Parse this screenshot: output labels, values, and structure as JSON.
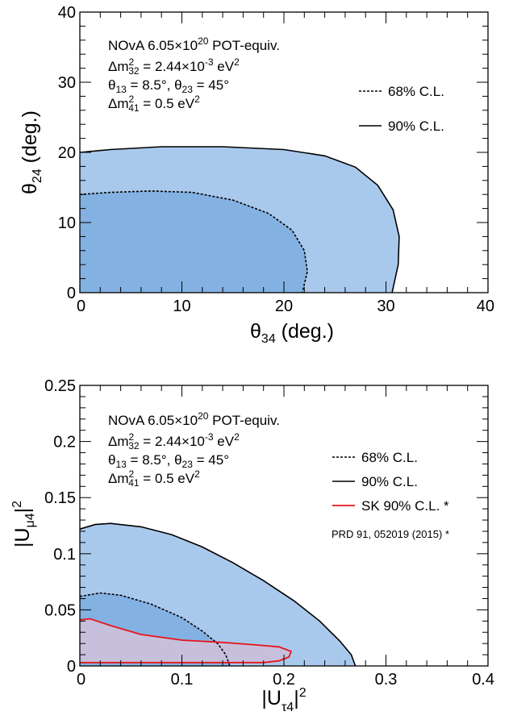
{
  "palette": {
    "outer_fill": "#a9c9ec",
    "inner_fill": "#83b1e2",
    "sk_fill": "#c7c0dc",
    "contour": "#000000",
    "sk_line": "#e8141c"
  },
  "chart_data": [
    {
      "type": "area",
      "xlim": [
        0,
        40
      ],
      "ylim": [
        0,
        40
      ],
      "xticks": [
        "0",
        "10",
        "20",
        "30",
        "40"
      ],
      "yticks": [
        "0",
        "10",
        "20",
        "30",
        "40"
      ],
      "xlabel": {
        "base": "θ",
        "sub": "34",
        "rest": " (deg.)"
      },
      "ylabel": {
        "base": "θ",
        "sub": "24",
        "rest": " (deg.)"
      },
      "info": {
        "line1": {
          "a": "NOvA 6.05×10",
          "sup": "20",
          "b": " POT-equiv."
        },
        "line2": {
          "a": "Δm",
          "sup": "2",
          "sub": "32",
          "b": " = 2.44×10",
          "sup2": "-3",
          "c": " eV",
          "sup3": "2"
        },
        "line3": {
          "a": "θ",
          "sub": "13",
          "b": " = 8.5°, θ",
          "sub2": "23",
          "c": " = 45°"
        },
        "line4": {
          "a": "Δm",
          "sup": "2",
          "sub": "41",
          "b": " = 0.5 eV",
          "sup3": "2"
        }
      },
      "legend": [
        {
          "label": "68% C.L.",
          "style": "dashed"
        },
        {
          "label": "90% C.L.",
          "style": "solid"
        }
      ],
      "series": [
        {
          "name": "90% C.L.",
          "points": [
            [
              0,
              0
            ],
            [
              0,
              20
            ],
            [
              3,
              20.4
            ],
            [
              8,
              20.8
            ],
            [
              14,
              20.8
            ],
            [
              20,
              20.4
            ],
            [
              24,
              19.5
            ],
            [
              27,
              17.9
            ],
            [
              29.2,
              15.3
            ],
            [
              30.7,
              11.8
            ],
            [
              31.3,
              8
            ],
            [
              31.2,
              4
            ],
            [
              30.6,
              0
            ]
          ]
        },
        {
          "name": "68% C.L.",
          "points": [
            [
              0,
              0
            ],
            [
              0,
              14
            ],
            [
              3,
              14.3
            ],
            [
              7,
              14.5
            ],
            [
              11,
              14.3
            ],
            [
              15,
              13.2
            ],
            [
              18.5,
              11.3
            ],
            [
              20.8,
              8.9
            ],
            [
              22,
              6
            ],
            [
              22.3,
              3
            ],
            [
              21.8,
              0
            ]
          ]
        }
      ]
    },
    {
      "type": "area",
      "xlim": [
        0,
        0.4
      ],
      "ylim": [
        0,
        0.25
      ],
      "xticks": [
        "0",
        "0.1",
        "0.2",
        "0.3",
        "0.4"
      ],
      "yticks": [
        "0",
        "0.05",
        "0.1",
        "0.15",
        "0.2",
        "0.25"
      ],
      "xlabel": {
        "base": "|U",
        "sub": "τ4",
        "rest": "|",
        "sup": "2"
      },
      "ylabel": {
        "base": "|U",
        "sub": "μ4",
        "rest": "|",
        "sup": "2"
      },
      "info": {
        "line1": {
          "a": "NOvA 6.05×10",
          "sup": "20",
          "b": " POT-equiv."
        },
        "line2": {
          "a": "Δm",
          "sup": "2",
          "sub": "32",
          "b": " = 2.44×10",
          "sup2": "-3",
          "c": " eV",
          "sup3": "2"
        },
        "line3": {
          "a": "θ",
          "sub": "13",
          "b": " = 8.5°, θ",
          "sub2": "23",
          "c": " = 45°"
        },
        "line4": {
          "a": "Δm",
          "sup": "2",
          "sub": "41",
          "b": " = 0.5 eV",
          "sup3": "2"
        }
      },
      "legend": [
        {
          "label": "68% C.L.",
          "style": "dashed"
        },
        {
          "label": "90% C.L.",
          "style": "solid"
        },
        {
          "label": "SK 90% C.L. *",
          "style": "red"
        }
      ],
      "reference": "PRD 91, 052019 (2015) *",
      "series": [
        {
          "name": "90% C.L.",
          "points": [
            [
              0,
              0
            ],
            [
              0,
              0.122
            ],
            [
              0.015,
              0.126
            ],
            [
              0.03,
              0.127
            ],
            [
              0.06,
              0.124
            ],
            [
              0.09,
              0.117
            ],
            [
              0.12,
              0.106
            ],
            [
              0.15,
              0.092
            ],
            [
              0.18,
              0.076
            ],
            [
              0.21,
              0.058
            ],
            [
              0.235,
              0.04
            ],
            [
              0.255,
              0.022
            ],
            [
              0.266,
              0.01
            ],
            [
              0.27,
              0
            ]
          ]
        },
        {
          "name": "68% C.L.",
          "points": [
            [
              0,
              0
            ],
            [
              0,
              0.062
            ],
            [
              0.02,
              0.065
            ],
            [
              0.04,
              0.063
            ],
            [
              0.07,
              0.055
            ],
            [
              0.1,
              0.043
            ],
            [
              0.12,
              0.031
            ],
            [
              0.135,
              0.02
            ],
            [
              0.143,
              0.01
            ],
            [
              0.147,
              0
            ]
          ]
        },
        {
          "name": "SK 90% C.L. *",
          "points": [
            [
              0,
              0
            ],
            [
              0,
              0.041
            ],
            [
              0.01,
              0.042
            ],
            [
              0.03,
              0.036
            ],
            [
              0.06,
              0.028
            ],
            [
              0.1,
              0.023
            ],
            [
              0.14,
              0.021
            ],
            [
              0.17,
              0.019
            ],
            [
              0.195,
              0.017
            ],
            [
              0.207,
              0.013
            ],
            [
              0.205,
              0.008
            ],
            [
              0.195,
              0.0045
            ],
            [
              0.18,
              0.003
            ],
            [
              0,
              0.003
            ]
          ]
        }
      ]
    }
  ]
}
